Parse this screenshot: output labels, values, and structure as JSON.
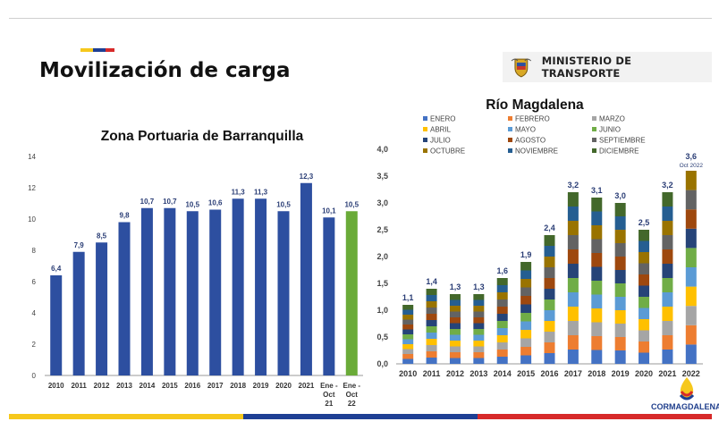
{
  "page": {
    "title": "Movilización de carga",
    "ministry_label": "MINISTERIO DE TRANSPORTE",
    "footer_logo_text": "CORMAGDALENA",
    "colors": {
      "accent_yellow": "#f6c81c",
      "accent_blue": "#1e3f94",
      "accent_red": "#d72a2a",
      "bar_blue": "#2d4fa0",
      "bar_green": "#6aab38"
    }
  },
  "chart_data": [
    {
      "type": "bar",
      "title": "Zona Portuaria de Barranquilla",
      "categories": [
        "2010",
        "2011",
        "2012",
        "2013",
        "2014",
        "2015",
        "2016",
        "2017",
        "2018",
        "2019",
        "2020",
        "2021",
        "Ene - Oct 21",
        "Ene - Oct 22"
      ],
      "category_lines": [
        [
          "2010"
        ],
        [
          "2011"
        ],
        [
          "2012"
        ],
        [
          "2013"
        ],
        [
          "2014"
        ],
        [
          "2015"
        ],
        [
          "2016"
        ],
        [
          "2017"
        ],
        [
          "2018"
        ],
        [
          "2019"
        ],
        [
          "2020"
        ],
        [
          "2021"
        ],
        [
          "Ene -",
          "Oct",
          "21"
        ],
        [
          "Ene -",
          "Oct",
          "22"
        ]
      ],
      "values": [
        6.4,
        7.9,
        8.5,
        9.8,
        10.7,
        10.7,
        10.5,
        10.6,
        11.3,
        11.3,
        10.5,
        12.3,
        10.1,
        10.5
      ],
      "value_labels": [
        "6,4",
        "7,9",
        "8,5",
        "9,8",
        "10,7",
        "10,7",
        "10,5",
        "10,6",
        "11,3",
        "11,3",
        "10,5",
        "12,3",
        "10,1",
        "10,5"
      ],
      "bar_colors": [
        "#2d4fa0",
        "#2d4fa0",
        "#2d4fa0",
        "#2d4fa0",
        "#2d4fa0",
        "#2d4fa0",
        "#2d4fa0",
        "#2d4fa0",
        "#2d4fa0",
        "#2d4fa0",
        "#2d4fa0",
        "#2d4fa0",
        "#2d4fa0",
        "#6aab38"
      ],
      "yticks": [
        "0",
        "2",
        "4",
        "6",
        "8",
        "10",
        "12",
        "14"
      ],
      "ylim": [
        0,
        14
      ],
      "grid": false
    },
    {
      "type": "bar",
      "stacked": true,
      "title": "Río Magdalena",
      "categories": [
        "2010",
        "2011",
        "2012",
        "2013",
        "2014",
        "2015",
        "2016",
        "2017",
        "2018",
        "2019",
        "2020",
        "2021",
        "2022"
      ],
      "totals": [
        1.1,
        1.4,
        1.3,
        1.3,
        1.6,
        1.9,
        2.4,
        3.2,
        3.1,
        3.0,
        2.5,
        3.2,
        3.6
      ],
      "total_labels": [
        "1,1",
        "1,4",
        "1,3",
        "1,3",
        "1,6",
        "1,9",
        "2,4",
        "3,2",
        "3,1",
        "3,0",
        "2,5",
        "3,2",
        "3,6"
      ],
      "total_note": "Oct 2022",
      "months_with_data": [
        12,
        12,
        12,
        12,
        12,
        12,
        12,
        12,
        12,
        12,
        12,
        12,
        10
      ],
      "series": [
        {
          "name": "ENERO",
          "color": "#4472c4"
        },
        {
          "name": "FEBRERO",
          "color": "#ed7d31"
        },
        {
          "name": "MARZO",
          "color": "#a5a5a5"
        },
        {
          "name": "ABRIL",
          "color": "#ffc000"
        },
        {
          "name": "MAYO",
          "color": "#5b9bd5"
        },
        {
          "name": "JUNIO",
          "color": "#70ad47"
        },
        {
          "name": "JULIO",
          "color": "#264478"
        },
        {
          "name": "AGOSTO",
          "color": "#9e480e"
        },
        {
          "name": "SEPTIEMBRE",
          "color": "#636363"
        },
        {
          "name": "OCTUBRE",
          "color": "#997300"
        },
        {
          "name": "NOVIEMBRE",
          "color": "#255e91"
        },
        {
          "name": "DICIEMBRE",
          "color": "#43682b"
        }
      ],
      "yticks": [
        "0,0",
        "0,5",
        "1,0",
        "1,5",
        "2,0",
        "2,5",
        "3,0",
        "3,5",
        "4,0"
      ],
      "ylim": [
        0,
        4
      ],
      "legend_position": "top-left",
      "grid": false
    }
  ]
}
